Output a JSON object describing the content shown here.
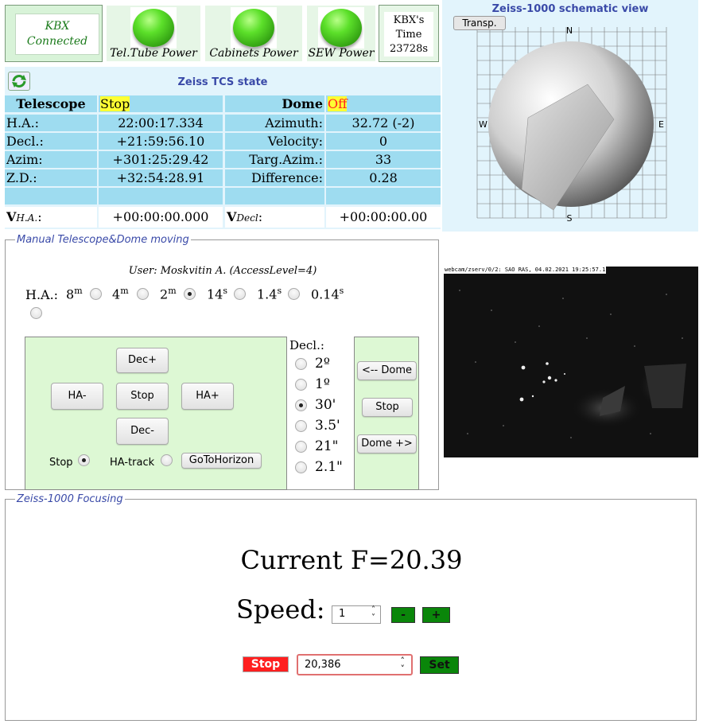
{
  "power": {
    "kbx_status": "KBX Connected",
    "tel_tube": "Tel.Tube Power",
    "cabinets": "Cabinets Power",
    "sew": "SEW Power",
    "kbx_time_label_1": "KBX's",
    "kbx_time_label_2": "Time",
    "kbx_time_value": "23728s"
  },
  "tcs": {
    "title": "Zeiss TCS state",
    "telescope_header": "Telescope",
    "telescope_state": "Stop",
    "dome_header": "Dome",
    "dome_state": "Off",
    "rows": [
      {
        "l1": "H.A.:",
        "v1": "22:00:17.334",
        "l2": "Azimuth:",
        "v2": "32.72 (-2)"
      },
      {
        "l1": "Decl.:",
        "v1": "+21:59:56.10",
        "l2": "Velocity:",
        "v2": "0"
      },
      {
        "l1": "Azim:",
        "v1": "+301:25:29.42",
        "l2": "Targ.Azim.:",
        "v2": "33"
      },
      {
        "l1": "Z.D.:",
        "v1": "+32:54:28.91",
        "l2": "Difference:",
        "v2": "0.28"
      }
    ],
    "vha_label": "V",
    "vha_sub": "H.A.",
    "vha_colon": ":",
    "vha_value": "+00:00:00.000",
    "vdecl_label": "V",
    "vdecl_sub": "Decl",
    "vdecl_colon": ":",
    "vdecl_value": "+00:00:00.00",
    "state_highlight_color": "#ffff33",
    "off_color": "#ff2020"
  },
  "schematic": {
    "title": "Zeiss-1000 schematic view",
    "transp_button": "Transp.",
    "compass": {
      "n": "N",
      "s": "S",
      "e": "E",
      "w": "W"
    }
  },
  "manual": {
    "legend": "Manual Telescope&Dome moving",
    "user": "User: Moskvitin A. (AccessLevel=4)",
    "ha_label": "H.A.:",
    "ha_steps": [
      {
        "num": "8",
        "unit": "m",
        "checked": false
      },
      {
        "num": "4",
        "unit": "m",
        "checked": false
      },
      {
        "num": "2",
        "unit": "m",
        "checked": true
      },
      {
        "num": "14",
        "unit": "s",
        "checked": false
      },
      {
        "num": "1.4",
        "unit": "s",
        "checked": false
      },
      {
        "num": "0.14",
        "unit": "s",
        "checked": false
      }
    ],
    "buttons": {
      "dec_plus": "Dec+",
      "ha_minus": "HA-",
      "stop": "Stop",
      "ha_plus": "HA+",
      "dec_minus": "Dec-",
      "goto_horizon": "GoToHorizon"
    },
    "mode_stop": "Stop",
    "mode_hatrack": "HA-track",
    "decl_label": "Decl.:",
    "decl_steps": [
      {
        "label": "2º",
        "checked": false
      },
      {
        "label": "1º",
        "checked": false
      },
      {
        "label": "30'",
        "checked": true
      },
      {
        "label": "3.5'",
        "checked": false
      },
      {
        "label": "21\"",
        "checked": false
      },
      {
        "label": "2.1\"",
        "checked": false
      }
    ],
    "dome_buttons": {
      "left": "<-- Dome",
      "stop": "Stop",
      "right": "Dome +>"
    }
  },
  "webcam": {
    "caption": "webcam/zserv/0/2: SAO RAS, 04.02.2021 19:25:57.1"
  },
  "focus": {
    "legend": "Zeiss-1000 Focusing",
    "current": "Current F=20.39",
    "speed_label": "Speed:",
    "speed_value": "1",
    "minus": "-",
    "plus": "+",
    "stop": "Stop",
    "target_value": "20,386",
    "set": "Set"
  }
}
